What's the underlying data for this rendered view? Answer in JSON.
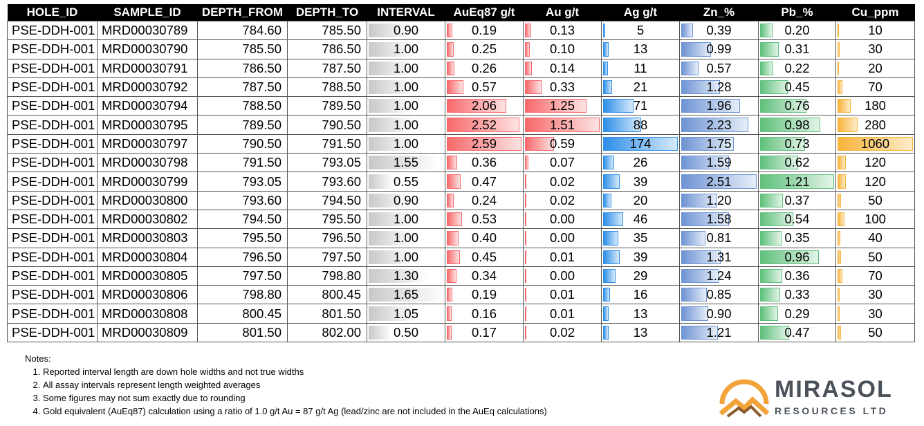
{
  "columns": [
    "HOLE_ID",
    "SAMPLE_ID",
    "DEPTH_FROM",
    "DEPTH_TO",
    "INTERVAL",
    "AuEq87 g/t",
    "Au g/t",
    "Ag g/t",
    "Zn_%",
    "Pb_%",
    "Cu_ppm"
  ],
  "rows": [
    [
      "PSE-DDH-001",
      "MRD00030789",
      "784.60",
      "785.50",
      "0.90",
      "0.19",
      "0.13",
      "5",
      "0.39",
      "0.20",
      "10"
    ],
    [
      "PSE-DDH-001",
      "MRD00030790",
      "785.50",
      "786.50",
      "1.00",
      "0.25",
      "0.10",
      "13",
      "0.99",
      "0.31",
      "30"
    ],
    [
      "PSE-DDH-001",
      "MRD00030791",
      "786.50",
      "787.50",
      "1.00",
      "0.26",
      "0.14",
      "11",
      "0.57",
      "0.22",
      "20"
    ],
    [
      "PSE-DDH-001",
      "MRD00030792",
      "787.50",
      "788.50",
      "1.00",
      "0.57",
      "0.33",
      "21",
      "1.28",
      "0.45",
      "70"
    ],
    [
      "PSE-DDH-001",
      "MRD00030794",
      "788.50",
      "789.50",
      "1.00",
      "2.06",
      "1.25",
      "71",
      "1.96",
      "0.76",
      "180"
    ],
    [
      "PSE-DDH-001",
      "MRD00030795",
      "789.50",
      "790.50",
      "1.00",
      "2.52",
      "1.51",
      "88",
      "2.23",
      "0.98",
      "280"
    ],
    [
      "PSE-DDH-001",
      "MRD00030797",
      "790.50",
      "791.50",
      "1.00",
      "2.59",
      "0.59",
      "174",
      "1.75",
      "0.73",
      "1060"
    ],
    [
      "PSE-DDH-001",
      "MRD00030798",
      "791.50",
      "793.05",
      "1.55",
      "0.36",
      "0.07",
      "26",
      "1.59",
      "0.62",
      "120"
    ],
    [
      "PSE-DDH-001",
      "MRD00030799",
      "793.05",
      "793.60",
      "0.55",
      "0.47",
      "0.02",
      "39",
      "2.51",
      "1.21",
      "120"
    ],
    [
      "PSE-DDH-001",
      "MRD00030800",
      "793.60",
      "794.50",
      "0.90",
      "0.24",
      "0.02",
      "20",
      "1.20",
      "0.37",
      "50"
    ],
    [
      "PSE-DDH-001",
      "MRD00030802",
      "794.50",
      "795.50",
      "1.00",
      "0.53",
      "0.00",
      "46",
      "1.58",
      "0.54",
      "100"
    ],
    [
      "PSE-DDH-001",
      "MRD00030803",
      "795.50",
      "796.50",
      "1.00",
      "0.40",
      "0.00",
      "35",
      "0.81",
      "0.35",
      "40"
    ],
    [
      "PSE-DDH-001",
      "MRD00030804",
      "796.50",
      "797.50",
      "1.00",
      "0.45",
      "0.01",
      "39",
      "1.31",
      "0.96",
      "50"
    ],
    [
      "PSE-DDH-001",
      "MRD00030805",
      "797.50",
      "798.80",
      "1.30",
      "0.34",
      "0.00",
      "29",
      "1.24",
      "0.36",
      "70"
    ],
    [
      "PSE-DDH-001",
      "MRD00030806",
      "798.80",
      "800.45",
      "1.65",
      "0.19",
      "0.01",
      "16",
      "0.85",
      "0.33",
      "30"
    ],
    [
      "PSE-DDH-001",
      "MRD00030808",
      "800.45",
      "801.50",
      "1.05",
      "0.16",
      "0.01",
      "13",
      "0.90",
      "0.29",
      "30"
    ],
    [
      "PSE-DDH-001",
      "MRD00030809",
      "801.50",
      "802.00",
      "0.50",
      "0.17",
      "0.02",
      "13",
      "1.21",
      "0.47",
      "50"
    ]
  ],
  "notes": {
    "title": "Notes:",
    "items": [
      "Reported interval length are down hole widths and not true widths",
      "All assay intervals represent length weighted averages",
      "Some figures may not sum exactly due to rounding",
      "Gold equivalent (AuEq87) calculation using a ratio of 1.0 g/t Au = 87 g/t Ag (lead/zinc are not included in the AuEq calculations)"
    ]
  },
  "logo": {
    "name": "MIRASOL",
    "subtitle": "RESOURCES LTD"
  },
  "colors": {
    "header_bg": "#000000",
    "interval_bar": "#c8c8c8",
    "aueq_bar": "#f8696b",
    "au_bar": "#f8696b",
    "ag_bar": "#2e8fe8",
    "zn_bar": "#6e93d3",
    "pb_bar": "#5fc07b",
    "cu_bar": "#f8b33a",
    "logo_orange": "#f2a33a",
    "logo_text": "#4a5158"
  }
}
